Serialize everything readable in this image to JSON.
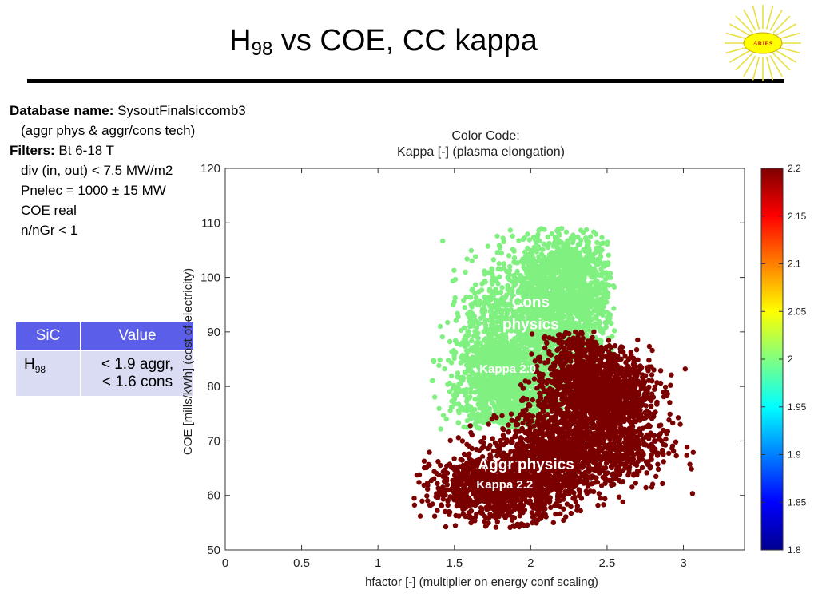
{
  "header": {
    "title_main": "H",
    "title_sub": "98",
    "title_rest": " vs COE, CC kappa",
    "logo_text": "ARIES"
  },
  "info": {
    "db_label": "Database name:",
    "db_value": "SysoutFinalsiccomb3",
    "db_note": "(aggr phys & aggr/cons tech)",
    "filters_label": "Filters:",
    "filter_1": "Bt 6-18 T",
    "filter_2": "div (in, out) < 7.5 MW/m2",
    "filter_3": "Pnelec = 1000 ± 15 MW",
    "filter_4": "COE real",
    "filter_5": "n/nGr < 1"
  },
  "table": {
    "headers": [
      "SiC",
      "Value"
    ],
    "row_label_main": "H",
    "row_label_sub": "98",
    "row_value_1": "< 1.9 aggr,",
    "row_value_2": "< 1.6 cons"
  },
  "chart_data": {
    "type": "scatter",
    "title_line1": "Color Code:",
    "title_line2": "Kappa [-] (plasma elongation)",
    "xlabel": "hfactor [-] (multiplier on energy conf scaling)",
    "ylabel": "COE [mills/kWh] (cost of electricity)",
    "xlim": [
      0,
      3.4
    ],
    "ylim": [
      50,
      120
    ],
    "xticks": [
      "0",
      "0.5",
      "1",
      "1.5",
      "2",
      "2.5",
      "3"
    ],
    "xtick_values": [
      0,
      0.5,
      1,
      1.5,
      2,
      2.5,
      3
    ],
    "yticks": [
      "50",
      "60",
      "70",
      "80",
      "90",
      "100",
      "110",
      "120"
    ],
    "ytick_values": [
      50,
      60,
      70,
      80,
      90,
      100,
      110,
      120
    ],
    "series": [
      {
        "name": "Cons physics",
        "kappa": 2.0,
        "color": "#80f080",
        "clusters": [
          {
            "cx": 1.85,
            "cy": 80,
            "sx": 0.17,
            "sy": 4.5,
            "n": 900
          },
          {
            "cx": 2.1,
            "cy": 93,
            "sx": 0.2,
            "sy": 6.5,
            "n": 1300
          },
          {
            "cx": 2.25,
            "cy": 100,
            "sx": 0.15,
            "sy": 5.0,
            "n": 700
          },
          {
            "cx": 1.7,
            "cy": 86,
            "sx": 0.12,
            "sy": 7,
            "n": 400
          }
        ],
        "range": {
          "x": [
            1.35,
            2.55
          ],
          "y": [
            72,
            109
          ]
        }
      },
      {
        "name": "Aggr physics",
        "kappa": 2.2,
        "color": "#7a0000",
        "clusters": [
          {
            "cx": 1.8,
            "cy": 61.5,
            "sx": 0.22,
            "sy": 3.0,
            "n": 1200
          },
          {
            "cx": 2.15,
            "cy": 68,
            "sx": 0.18,
            "sy": 4.0,
            "n": 900
          },
          {
            "cx": 2.45,
            "cy": 79,
            "sx": 0.17,
            "sy": 3.5,
            "n": 1300
          },
          {
            "cx": 2.55,
            "cy": 69,
            "sx": 0.18,
            "sy": 4.0,
            "n": 500
          },
          {
            "cx": 2.3,
            "cy": 85,
            "sx": 0.12,
            "sy": 3.0,
            "n": 300
          }
        ],
        "range": {
          "x": [
            1.2,
            3.12
          ],
          "y": [
            54,
            90
          ]
        }
      }
    ],
    "annotations": [
      {
        "text": "Cons",
        "x": 2.0,
        "y": 94.6
      },
      {
        "text": "physics",
        "x": 2.0,
        "y": 90.5
      },
      {
        "text": "Kappa 2.0",
        "x": 1.85,
        "y": 82.5
      },
      {
        "text": "Aggr physics",
        "x": 1.97,
        "y": 64.8
      },
      {
        "text": "Kappa 2.2",
        "x": 1.83,
        "y": 61.3
      }
    ],
    "colorbar": {
      "min": 1.8,
      "max": 2.2,
      "ticks": [
        "2.2",
        "2.15",
        "2.1",
        "2.05",
        "2",
        "1.95",
        "1.9",
        "1.85",
        "1.8"
      ],
      "tick_values": [
        2.2,
        2.15,
        2.1,
        2.05,
        2.0,
        1.95,
        1.9,
        1.85,
        1.8
      ],
      "colormap": "jet"
    }
  }
}
